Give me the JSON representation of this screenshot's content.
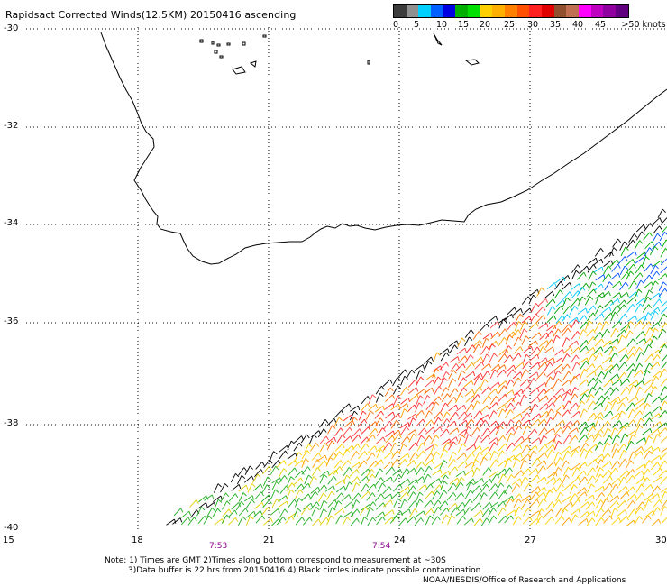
{
  "title": "Rapidsact Corrected Winds(12.5KM) 20150416 ascending",
  "legend": {
    "colors": [
      "#3c3c3c",
      "#909090",
      "#00d0ff",
      "#0060ff",
      "#0000e0",
      "#00b000",
      "#00e000",
      "#ffd000",
      "#ffb000",
      "#ff8000",
      "#ff5000",
      "#ff2020",
      "#e00000",
      "#905030",
      "#c07050",
      "#ff00ff",
      "#c000c0",
      "#9000a0",
      "#600080"
    ],
    "ticks": [
      "0",
      "5",
      "10",
      "15",
      "20",
      "25",
      "30",
      "35",
      "40",
      "45",
      ">50 knots"
    ]
  },
  "map": {
    "lat_labels": [
      "-30",
      "-32",
      "-34",
      "-36",
      "-38",
      "-40"
    ],
    "lon_labels": [
      "15",
      "18",
      "21",
      "24",
      "27",
      "30"
    ],
    "time_labels": [
      "7:53",
      "7:54"
    ]
  },
  "notes": [
    "Note: 1) Times are GMT 2)Times along bottom correspond to measurement at ~30S",
    "3)Data buffer is 22 hrs from 20150416 4) Black circles indicate possible contamination"
  ],
  "credit": "NOAA/NESDIS/Office of Research and Applications"
}
